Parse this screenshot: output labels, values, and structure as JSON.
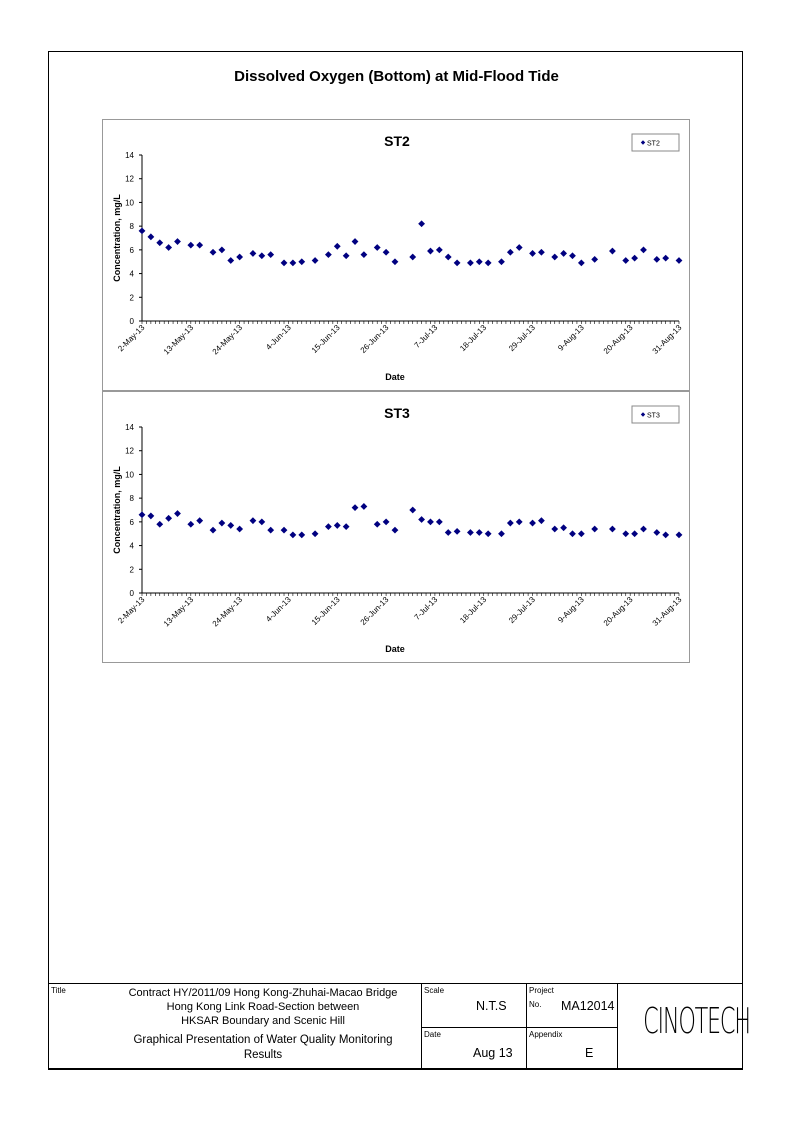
{
  "page_title": "Dissolved Oxygen (Bottom) at Mid-Flood Tide",
  "chart_data": [
    {
      "type": "scatter",
      "title": "ST2",
      "xlabel": "Date",
      "ylabel": "Concentration, mg/L",
      "ylim": [
        0,
        14
      ],
      "yticks": [
        "0",
        "2",
        "4",
        "6",
        "8",
        "10",
        "12",
        "14"
      ],
      "xticks": [
        "2-May-13",
        "13-May-13",
        "24-May-13",
        "4-Jun-13",
        "15-Jun-13",
        "26-Jun-13",
        "7-Jul-13",
        "18-Jul-13",
        "29-Jul-13",
        "9-Aug-13",
        "20-Aug-13",
        "31-Aug-13"
      ],
      "x_range_days": [
        0,
        121
      ],
      "legend": "top-right",
      "series": [
        {
          "name": "ST2",
          "color": "#000080",
          "points": [
            {
              "day": 0,
              "y": 7.6
            },
            {
              "day": 2,
              "y": 7.1
            },
            {
              "day": 4,
              "y": 6.6
            },
            {
              "day": 6,
              "y": 6.2
            },
            {
              "day": 8,
              "y": 6.7
            },
            {
              "day": 11,
              "y": 6.4
            },
            {
              "day": 13,
              "y": 6.4
            },
            {
              "day": 16,
              "y": 5.8
            },
            {
              "day": 18,
              "y": 6.0
            },
            {
              "day": 20,
              "y": 5.1
            },
            {
              "day": 22,
              "y": 5.4
            },
            {
              "day": 25,
              "y": 5.7
            },
            {
              "day": 27,
              "y": 5.5
            },
            {
              "day": 29,
              "y": 5.6
            },
            {
              "day": 32,
              "y": 4.9
            },
            {
              "day": 34,
              "y": 4.9
            },
            {
              "day": 36,
              "y": 5.0
            },
            {
              "day": 39,
              "y": 5.1
            },
            {
              "day": 42,
              "y": 5.6
            },
            {
              "day": 44,
              "y": 6.3
            },
            {
              "day": 46,
              "y": 5.5
            },
            {
              "day": 48,
              "y": 6.7
            },
            {
              "day": 50,
              "y": 5.6
            },
            {
              "day": 53,
              "y": 6.2
            },
            {
              "day": 55,
              "y": 5.8
            },
            {
              "day": 57,
              "y": 5.0
            },
            {
              "day": 61,
              "y": 5.4
            },
            {
              "day": 63,
              "y": 8.2
            },
            {
              "day": 65,
              "y": 5.9
            },
            {
              "day": 67,
              "y": 6.0
            },
            {
              "day": 69,
              "y": 5.4
            },
            {
              "day": 71,
              "y": 4.9
            },
            {
              "day": 74,
              "y": 4.9
            },
            {
              "day": 76,
              "y": 5.0
            },
            {
              "day": 78,
              "y": 4.9
            },
            {
              "day": 81,
              "y": 5.0
            },
            {
              "day": 83,
              "y": 5.8
            },
            {
              "day": 85,
              "y": 6.2
            },
            {
              "day": 88,
              "y": 5.7
            },
            {
              "day": 90,
              "y": 5.8
            },
            {
              "day": 93,
              "y": 5.4
            },
            {
              "day": 95,
              "y": 5.7
            },
            {
              "day": 97,
              "y": 5.5
            },
            {
              "day": 99,
              "y": 4.9
            },
            {
              "day": 102,
              "y": 5.2
            },
            {
              "day": 106,
              "y": 5.9
            },
            {
              "day": 109,
              "y": 5.1
            },
            {
              "day": 111,
              "y": 5.3
            },
            {
              "day": 113,
              "y": 6.0
            },
            {
              "day": 116,
              "y": 5.2
            },
            {
              "day": 118,
              "y": 5.3
            },
            {
              "day": 121,
              "y": 5.1
            }
          ]
        }
      ]
    },
    {
      "type": "scatter",
      "title": "ST3",
      "xlabel": "Date",
      "ylabel": "Concentration, mg/L",
      "ylim": [
        0,
        14
      ],
      "yticks": [
        "0",
        "2",
        "4",
        "6",
        "8",
        "10",
        "12",
        "14"
      ],
      "xticks": [
        "2-May-13",
        "13-May-13",
        "24-May-13",
        "4-Jun-13",
        "15-Jun-13",
        "26-Jun-13",
        "7-Jul-13",
        "18-Jul-13",
        "29-Jul-13",
        "9-Aug-13",
        "20-Aug-13",
        "31-Aug-13"
      ],
      "x_range_days": [
        0,
        121
      ],
      "legend": "top-right",
      "series": [
        {
          "name": "ST3",
          "color": "#000080",
          "points": [
            {
              "day": 0,
              "y": 6.6
            },
            {
              "day": 2,
              "y": 6.5
            },
            {
              "day": 4,
              "y": 5.8
            },
            {
              "day": 6,
              "y": 6.3
            },
            {
              "day": 8,
              "y": 6.7
            },
            {
              "day": 11,
              "y": 5.8
            },
            {
              "day": 13,
              "y": 6.1
            },
            {
              "day": 16,
              "y": 5.3
            },
            {
              "day": 18,
              "y": 5.9
            },
            {
              "day": 20,
              "y": 5.7
            },
            {
              "day": 22,
              "y": 5.4
            },
            {
              "day": 25,
              "y": 6.1
            },
            {
              "day": 27,
              "y": 6.0
            },
            {
              "day": 29,
              "y": 5.3
            },
            {
              "day": 32,
              "y": 5.3
            },
            {
              "day": 34,
              "y": 4.9
            },
            {
              "day": 36,
              "y": 4.9
            },
            {
              "day": 39,
              "y": 5.0
            },
            {
              "day": 42,
              "y": 5.6
            },
            {
              "day": 44,
              "y": 5.7
            },
            {
              "day": 46,
              "y": 5.6
            },
            {
              "day": 48,
              "y": 7.2
            },
            {
              "day": 50,
              "y": 7.3
            },
            {
              "day": 53,
              "y": 5.8
            },
            {
              "day": 55,
              "y": 6.0
            },
            {
              "day": 57,
              "y": 5.3
            },
            {
              "day": 61,
              "y": 7.0
            },
            {
              "day": 63,
              "y": 6.2
            },
            {
              "day": 65,
              "y": 6.0
            },
            {
              "day": 67,
              "y": 6.0
            },
            {
              "day": 69,
              "y": 5.1
            },
            {
              "day": 71,
              "y": 5.2
            },
            {
              "day": 74,
              "y": 5.1
            },
            {
              "day": 76,
              "y": 5.1
            },
            {
              "day": 78,
              "y": 5.0
            },
            {
              "day": 81,
              "y": 5.0
            },
            {
              "day": 83,
              "y": 5.9
            },
            {
              "day": 85,
              "y": 6.0
            },
            {
              "day": 88,
              "y": 5.9
            },
            {
              "day": 90,
              "y": 6.1
            },
            {
              "day": 93,
              "y": 5.4
            },
            {
              "day": 95,
              "y": 5.5
            },
            {
              "day": 97,
              "y": 5.0
            },
            {
              "day": 99,
              "y": 5.0
            },
            {
              "day": 102,
              "y": 5.4
            },
            {
              "day": 106,
              "y": 5.4
            },
            {
              "day": 109,
              "y": 5.0
            },
            {
              "day": 111,
              "y": 5.0
            },
            {
              "day": 113,
              "y": 5.4
            },
            {
              "day": 116,
              "y": 5.1
            },
            {
              "day": 118,
              "y": 4.9
            },
            {
              "day": 121,
              "y": 4.9
            }
          ]
        }
      ]
    }
  ],
  "title_block": {
    "title_label": "Title",
    "title_lines": [
      "Contract HY/2011/09 Hong Kong-Zhuhai-Macao Bridge",
      "Hong Kong Link Road-Section between",
      "HKSAR Boundary and Scenic Hill"
    ],
    "subtitle_lines": [
      "Graphical Presentation of Water Quality Monitoring",
      "Results"
    ],
    "scale_label": "Scale",
    "scale_value": "N.T.S",
    "project_label": "Project",
    "no_label": "No.",
    "project_no": "MA12014",
    "date_label": "Date",
    "date_value": "Aug 13",
    "appendix_label": "Appendix",
    "appendix_value": "E",
    "logo_text": "CINOTECH"
  }
}
